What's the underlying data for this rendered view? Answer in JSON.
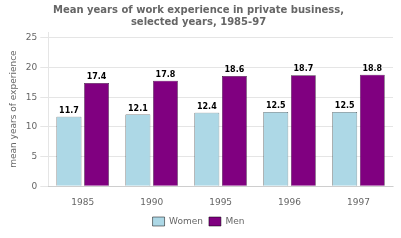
{
  "chart_data": {
    "type": "bar",
    "title": "Mean years of work experience in private business,\nselected years, 1985-97",
    "ylabel": "mean years of experience",
    "categories": [
      "1985",
      "1990",
      "1995",
      "1996",
      "1997"
    ],
    "series": [
      {
        "name": "Women",
        "color": "#add8e6",
        "values": [
          11.7,
          12.1,
          12.4,
          12.5,
          12.5
        ]
      },
      {
        "name": "Men",
        "color": "#800080",
        "values": [
          17.4,
          17.8,
          18.6,
          18.7,
          18.8
        ]
      }
    ],
    "ylim": [
      0,
      26
    ],
    "yticks": [
      0,
      5,
      10,
      15,
      20,
      25
    ],
    "grid": true,
    "legend": "bottom",
    "data_labels": true
  }
}
